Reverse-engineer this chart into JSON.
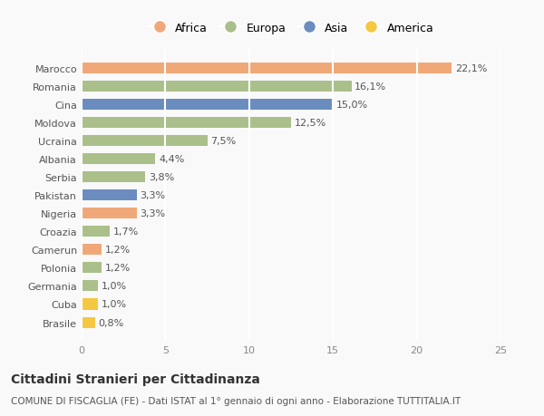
{
  "categories": [
    "Brasile",
    "Cuba",
    "Germania",
    "Polonia",
    "Camerun",
    "Croazia",
    "Nigeria",
    "Pakistan",
    "Serbia",
    "Albania",
    "Ucraina",
    "Moldova",
    "Cina",
    "Romania",
    "Marocco"
  ],
  "values": [
    0.8,
    1.0,
    1.0,
    1.2,
    1.2,
    1.7,
    3.3,
    3.3,
    3.8,
    4.4,
    7.5,
    12.5,
    15.0,
    16.1,
    22.1
  ],
  "labels": [
    "0,8%",
    "1,0%",
    "1,0%",
    "1,2%",
    "1,2%",
    "1,7%",
    "3,3%",
    "3,3%",
    "3,8%",
    "4,4%",
    "7,5%",
    "12,5%",
    "15,0%",
    "16,1%",
    "22,1%"
  ],
  "continents": [
    "America",
    "America",
    "Europa",
    "Europa",
    "Africa",
    "Europa",
    "Africa",
    "Asia",
    "Europa",
    "Europa",
    "Europa",
    "Europa",
    "Asia",
    "Europa",
    "Africa"
  ],
  "colors": {
    "Africa": "#F0A878",
    "Europa": "#AABF8A",
    "Asia": "#6B8CBE",
    "America": "#F5C842"
  },
  "legend_order": [
    "Africa",
    "Europa",
    "Asia",
    "America"
  ],
  "xlim": [
    0,
    25
  ],
  "xticks": [
    0,
    5,
    10,
    15,
    20,
    25
  ],
  "title": "Cittadini Stranieri per Cittadinanza",
  "subtitle": "COMUNE DI FISCAGLIA (FE) - Dati ISTAT al 1° gennaio di ogni anno - Elaborazione TUTTITALIA.IT",
  "background_color": "#f9f9f9",
  "grid_color": "#ffffff",
  "bar_height": 0.6
}
